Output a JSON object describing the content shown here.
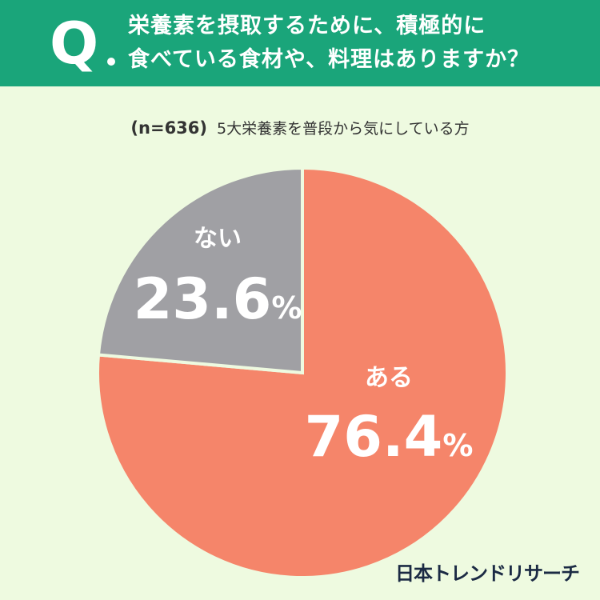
{
  "header": {
    "q_mark": "Q",
    "line1": "栄養素を摂取するために、積極的に",
    "line2": "食べている食材や、料理はありますか？"
  },
  "subtitle": {
    "sample": "(n=636)",
    "description": "5大栄養素を普段から気にしている方"
  },
  "brand": "日本トレンドリサーチ",
  "colors": {
    "header": "#1aa57a",
    "background": "#eefae0",
    "yes": "#f5856a",
    "no": "#a0a0a4"
  },
  "chart_data": {
    "type": "pie",
    "title": "",
    "slices": [
      {
        "name": "ある",
        "value": 76.4,
        "value_label": "76.4",
        "unit": "%",
        "color": "#f5856a"
      },
      {
        "name": "ない",
        "value": 23.6,
        "value_label": "23.6",
        "unit": "%",
        "color": "#a0a0a4"
      }
    ],
    "start": "12 o'clock",
    "direction": "clockwise"
  }
}
